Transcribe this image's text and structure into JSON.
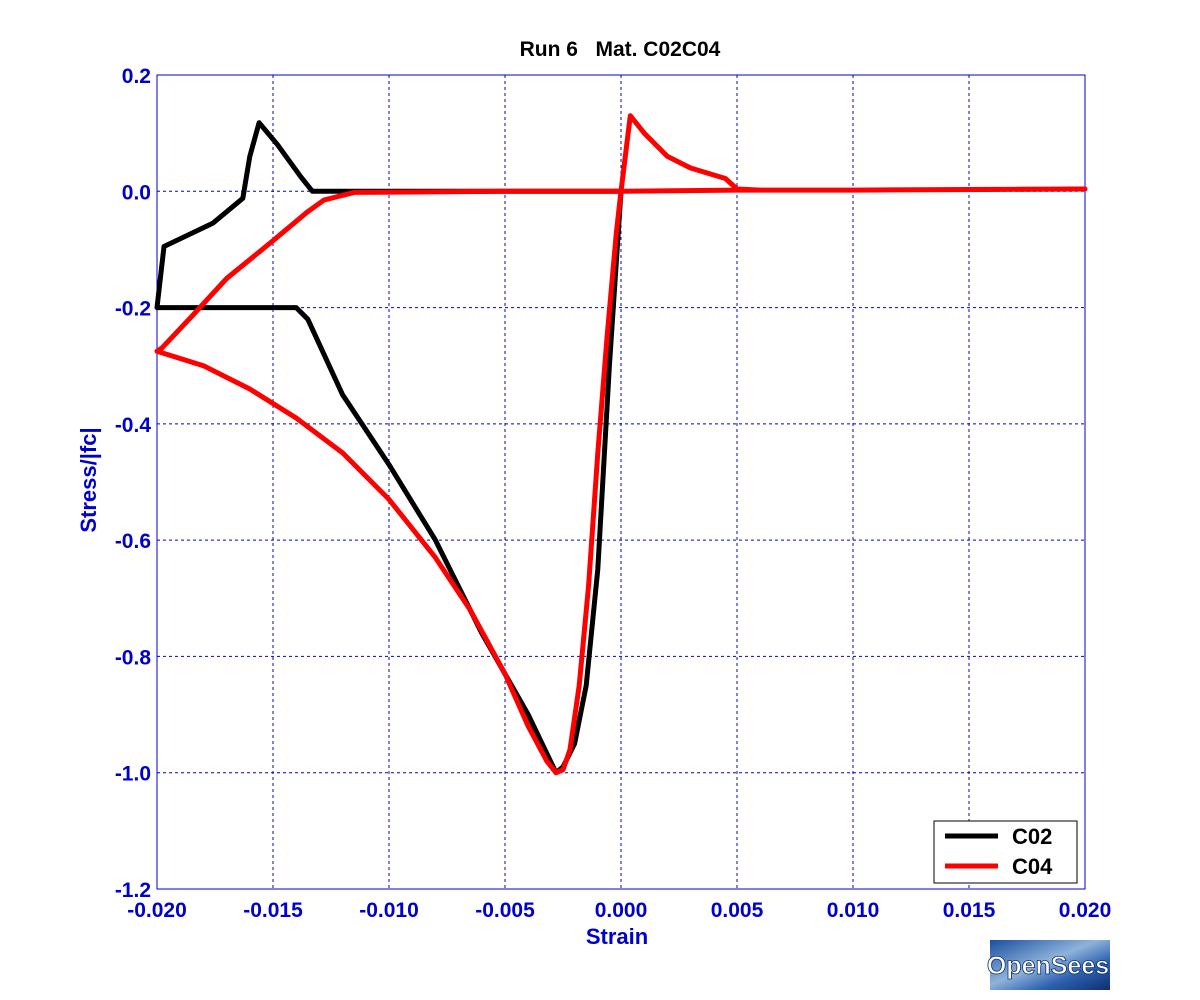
{
  "chart_data": {
    "type": "line",
    "title": "Run 6   Mat. C02C04",
    "xlabel": "Strain",
    "ylabel": "Stress/|fc|",
    "xlim": [
      -0.02,
      0.02
    ],
    "ylim": [
      -1.2,
      0.2
    ],
    "xticks": [
      "-0.020",
      "-0.015",
      "-0.010",
      "-0.005",
      "0.000",
      "0.005",
      "0.010",
      "0.015",
      "0.020"
    ],
    "yticks": [
      "0.2",
      "0.0",
      "-0.2",
      "-0.4",
      "-0.6",
      "-0.8",
      "-1.0",
      "-1.2"
    ],
    "grid": true,
    "legend_position": "bottom-right",
    "series": [
      {
        "name": "C02",
        "color": "#000000",
        "points": [
          [
            0.0,
            0.0
          ],
          [
            -0.0005,
            -0.3
          ],
          [
            -0.001,
            -0.65
          ],
          [
            -0.0015,
            -0.85
          ],
          [
            -0.002,
            -0.95
          ],
          [
            -0.0025,
            -0.99
          ],
          [
            -0.0028,
            -1.0
          ],
          [
            -0.004,
            -0.9
          ],
          [
            -0.006,
            -0.76
          ],
          [
            -0.008,
            -0.6
          ],
          [
            -0.01,
            -0.47
          ],
          [
            -0.012,
            -0.35
          ],
          [
            -0.0135,
            -0.22
          ],
          [
            -0.014,
            -0.2
          ],
          [
            -0.0175,
            -0.2
          ],
          [
            -0.02,
            -0.2
          ],
          [
            -0.0197,
            -0.095
          ],
          [
            -0.0176,
            -0.055
          ],
          [
            -0.0163,
            -0.012
          ],
          [
            -0.016,
            0.06
          ],
          [
            -0.0156,
            0.118
          ],
          [
            -0.0148,
            0.08
          ],
          [
            -0.0138,
            0.025
          ],
          [
            -0.0133,
            0.0
          ],
          [
            -0.0125,
            0.0
          ],
          [
            -0.005,
            0.0
          ],
          [
            0.0,
            0.0
          ]
        ]
      },
      {
        "name": "C04",
        "color": "#ff0000",
        "points": [
          [
            -0.02,
            -0.275
          ],
          [
            -0.018,
            -0.3
          ],
          [
            -0.016,
            -0.34
          ],
          [
            -0.014,
            -0.39
          ],
          [
            -0.012,
            -0.45
          ],
          [
            -0.01,
            -0.53
          ],
          [
            -0.008,
            -0.63
          ],
          [
            -0.0065,
            -0.72
          ],
          [
            -0.005,
            -0.83
          ],
          [
            -0.004,
            -0.92
          ],
          [
            -0.0032,
            -0.98
          ],
          [
            -0.0028,
            -1.0
          ],
          [
            -0.0025,
            -0.995
          ],
          [
            -0.0022,
            -0.96
          ],
          [
            -0.0018,
            -0.85
          ],
          [
            -0.0014,
            -0.68
          ],
          [
            -0.001,
            -0.45
          ],
          [
            -0.0006,
            -0.25
          ],
          [
            -0.0002,
            -0.07
          ],
          [
            0.0,
            0.0
          ],
          [
            0.0004,
            0.13
          ],
          [
            0.001,
            0.1
          ],
          [
            0.002,
            0.06
          ],
          [
            0.003,
            0.04
          ],
          [
            0.0045,
            0.022
          ],
          [
            0.005,
            0.004
          ],
          [
            0.006,
            0.002
          ],
          [
            0.01,
            0.002
          ],
          [
            0.015,
            0.003
          ],
          [
            0.02,
            0.004
          ],
          [
            0.01,
            0.002
          ],
          [
            0.005,
            0.002
          ],
          [
            0.0,
            0.0
          ],
          [
            -0.005,
            0.0
          ],
          [
            -0.0115,
            -0.002
          ],
          [
            -0.0128,
            -0.015
          ],
          [
            -0.0135,
            -0.035
          ],
          [
            -0.015,
            -0.085
          ],
          [
            -0.017,
            -0.15
          ],
          [
            -0.0185,
            -0.215
          ],
          [
            -0.0198,
            -0.27
          ],
          [
            -0.02,
            -0.275
          ]
        ]
      }
    ]
  },
  "logo": {
    "text": "OpenSees"
  }
}
